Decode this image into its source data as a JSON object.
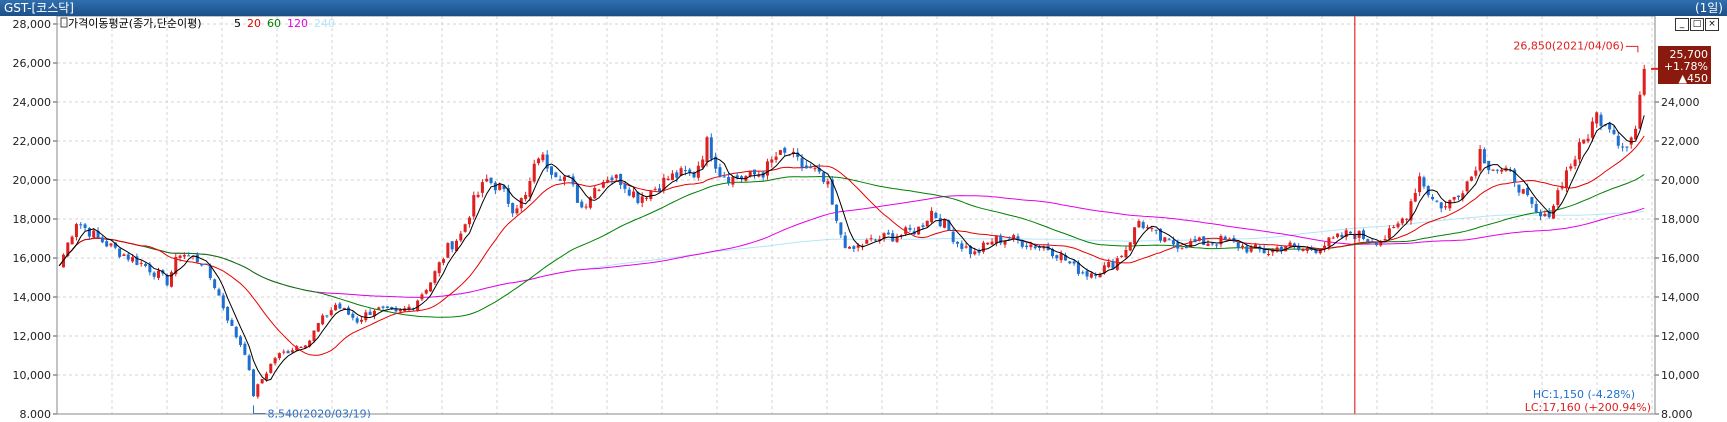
{
  "window": {
    "title": "GST-[코스닥]",
    "period": "(1일)"
  },
  "indicator": {
    "label": "가격이동평균(종가,단순이평)",
    "periods": [
      {
        "text": "5",
        "color": "#000000"
      },
      {
        "text": "20",
        "color": "#e60000"
      },
      {
        "text": "60",
        "color": "#008000"
      },
      {
        "text": "120",
        "color": "#e600e6"
      },
      {
        "text": "240",
        "color": "#b3e6f5"
      }
    ]
  },
  "annotations": {
    "high": "26,850(2021/04/06)",
    "low": "8,540(2020/03/19)",
    "hc": "HC:1,150 (-4.28%)",
    "lc": "LC:17,160 (+200.94%)"
  },
  "price_box": {
    "price": "25,700",
    "change_pct": "+1.78%",
    "change": "▲450"
  },
  "colors": {
    "up": "#e02020",
    "down": "#1f6fd0",
    "ma5": "#000000",
    "ma20": "#e60000",
    "ma60": "#008000",
    "ma120": "#e600e6",
    "ma240": "#b3e6f5",
    "cursor": "#e00000",
    "grid": "#d4d4d4"
  },
  "chart_data": {
    "type": "candlestick",
    "ylim": [
      8000,
      28000
    ],
    "y_ticks": [
      "28,000",
      "26,000",
      "24,000",
      "22,000",
      "20,000",
      "18,000",
      "16,000",
      "14,000",
      "12,000",
      "10,000",
      "8,000"
    ],
    "right_ticks": [
      "24,000",
      "22,000",
      "20,000",
      "18,000",
      "16,000",
      "14,000",
      "12,000",
      "10,000",
      "8,000"
    ],
    "grid": true,
    "close_path": [
      [
        0,
        15600
      ],
      [
        4,
        17900
      ],
      [
        9,
        17000
      ],
      [
        14,
        16300
      ],
      [
        20,
        15600
      ],
      [
        25,
        14800
      ],
      [
        28,
        16300
      ],
      [
        33,
        15800
      ],
      [
        36,
        14600
      ],
      [
        40,
        12400
      ],
      [
        43,
        11200
      ],
      [
        45,
        9000
      ],
      [
        47,
        9800
      ],
      [
        50,
        10900
      ],
      [
        55,
        11500
      ],
      [
        58,
        11800
      ],
      [
        60,
        12600
      ],
      [
        64,
        13600
      ],
      [
        69,
        12800
      ],
      [
        73,
        13400
      ],
      [
        78,
        13100
      ],
      [
        82,
        13600
      ],
      [
        86,
        14800
      ],
      [
        90,
        16500
      ],
      [
        93,
        17200
      ],
      [
        96,
        18900
      ],
      [
        99,
        20000
      ],
      [
        102,
        19600
      ],
      [
        105,
        18600
      ],
      [
        108,
        19100
      ],
      [
        111,
        21300
      ],
      [
        114,
        20600
      ],
      [
        118,
        20000
      ],
      [
        121,
        18600
      ],
      [
        124,
        19600
      ],
      [
        127,
        20200
      ],
      [
        130,
        20000
      ],
      [
        134,
        19100
      ],
      [
        138,
        19600
      ],
      [
        141,
        20100
      ],
      [
        144,
        20300
      ],
      [
        147,
        20300
      ],
      [
        150,
        21900
      ],
      [
        153,
        20400
      ],
      [
        156,
        20100
      ],
      [
        160,
        20200
      ],
      [
        163,
        20400
      ],
      [
        166,
        21200
      ],
      [
        169,
        21300
      ],
      [
        172,
        20700
      ],
      [
        175,
        20400
      ],
      [
        178,
        19600
      ],
      [
        180,
        17700
      ],
      [
        183,
        16300
      ],
      [
        186,
        16700
      ],
      [
        190,
        17000
      ],
      [
        195,
        17200
      ],
      [
        199,
        17500
      ],
      [
        202,
        18400
      ],
      [
        205,
        17700
      ],
      [
        208,
        16800
      ],
      [
        212,
        16200
      ],
      [
        216,
        16900
      ],
      [
        220,
        17000
      ],
      [
        225,
        16700
      ],
      [
        229,
        16500
      ],
      [
        232,
        16100
      ],
      [
        235,
        15500
      ],
      [
        238,
        15200
      ],
      [
        241,
        15400
      ],
      [
        244,
        15700
      ],
      [
        247,
        16500
      ],
      [
        250,
        17900
      ],
      [
        253,
        17300
      ],
      [
        256,
        16800
      ],
      [
        260,
        16700
      ],
      [
        265,
        16800
      ],
      [
        270,
        16900
      ],
      [
        275,
        16500
      ],
      [
        280,
        16300
      ],
      [
        284,
        16700
      ],
      [
        287,
        16400
      ],
      [
        291,
        16500
      ],
      [
        295,
        16900
      ],
      [
        299,
        17300
      ],
      [
        303,
        17000
      ],
      [
        306,
        16900
      ],
      [
        309,
        17400
      ],
      [
        312,
        18300
      ],
      [
        315,
        20200
      ],
      [
        318,
        19000
      ],
      [
        321,
        18600
      ],
      [
        324,
        19400
      ],
      [
        327,
        20200
      ],
      [
        329,
        21500
      ],
      [
        331,
        20800
      ],
      [
        334,
        20400
      ],
      [
        337,
        20100
      ],
      [
        340,
        18900
      ],
      [
        342,
        18200
      ],
      [
        344,
        18000
      ],
      [
        346,
        18800
      ],
      [
        348,
        20000
      ],
      [
        351,
        21200
      ],
      [
        354,
        22400
      ],
      [
        356,
        23300
      ],
      [
        359,
        22900
      ],
      [
        361,
        22100
      ],
      [
        363,
        21700
      ],
      [
        365,
        22600
      ],
      [
        366,
        24000
      ],
      [
        367,
        25700
      ]
    ],
    "last_price": 25700,
    "cursor_index": 300,
    "num_bars": 370,
    "high_marker": {
      "index": 366,
      "value": 26850
    },
    "low_marker": {
      "index": 45,
      "value": 8540
    }
  }
}
